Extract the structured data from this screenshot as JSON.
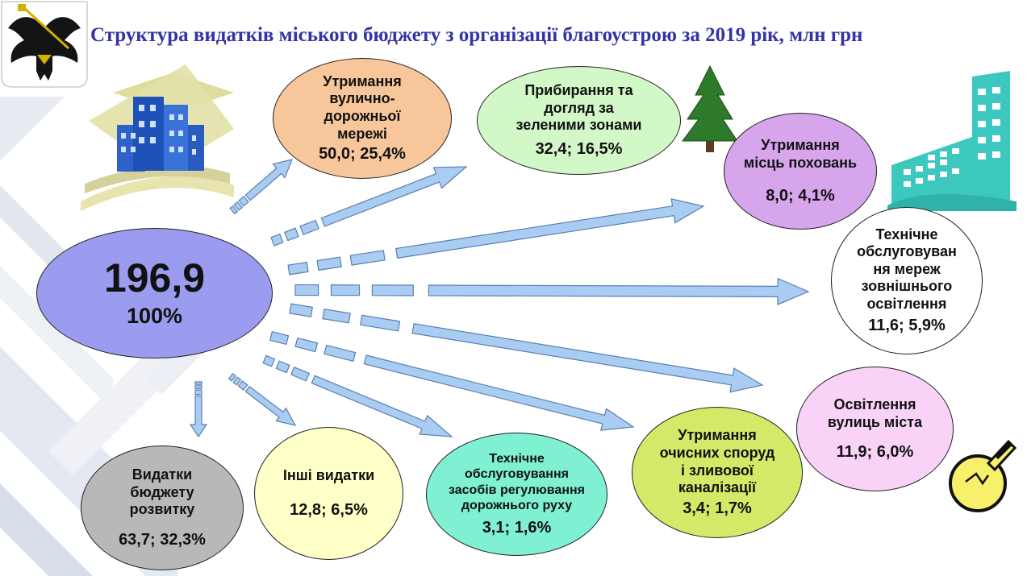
{
  "title": "Структура видатків міського бюджету з організації благоустрою за 2019 рік, млн грн",
  "colors": {
    "title": "#3333a8",
    "arrow_fill": "#a9cdf2",
    "arrow_stroke": "#5b7fb0",
    "center": "#9b9cf0"
  },
  "icons": [
    "coat-of-arms-icon",
    "city-buildings-icon",
    "fir-tree-icon",
    "office-building-icon",
    "light-bulb-icon"
  ],
  "center": {
    "total": "196,9",
    "percent": "100%"
  },
  "items": [
    {
      "label": "Утримання\nвулично-\nдорожньої\nмережі",
      "value": "50,0; 25,4%",
      "color": "#f7c79b"
    },
    {
      "label": "Прибирання та\nдогляд за\nзеленими зонами",
      "value": "32,4; 16,5%",
      "color": "#d3f8c8"
    },
    {
      "label": "Утримання\nмісць поховань",
      "value": "8,0; 4,1%",
      "color": "#d7a5ec"
    },
    {
      "label": "Технічне\nобслуговуван\nня мереж\nзовнішнього\nосвітлення",
      "value": "11,6; 5,9%",
      "color": "#ffffff"
    },
    {
      "label": "Освітлення\nвулиць міста",
      "value": "11,9; 6,0%",
      "color": "#f9d3f7"
    },
    {
      "label": "Утримання\nочисних споруд\nі зливової\nканалізації",
      "value": "3,4; 1,7%",
      "color": "#d2ea68"
    },
    {
      "label": "Технічне\nобслуговування\nзасобів регулювання\nдорожнього руху",
      "value": "3,1; 1,6%",
      "color": "#7ff0d2"
    },
    {
      "label": "Інші видатки",
      "value": "12,8; 6,5%",
      "color": "#ffffc8"
    },
    {
      "label": "Видатки\nбюджету\nрозвитку",
      "value": "63,7; 32,3%",
      "color": "#b8b8b8"
    }
  ]
}
